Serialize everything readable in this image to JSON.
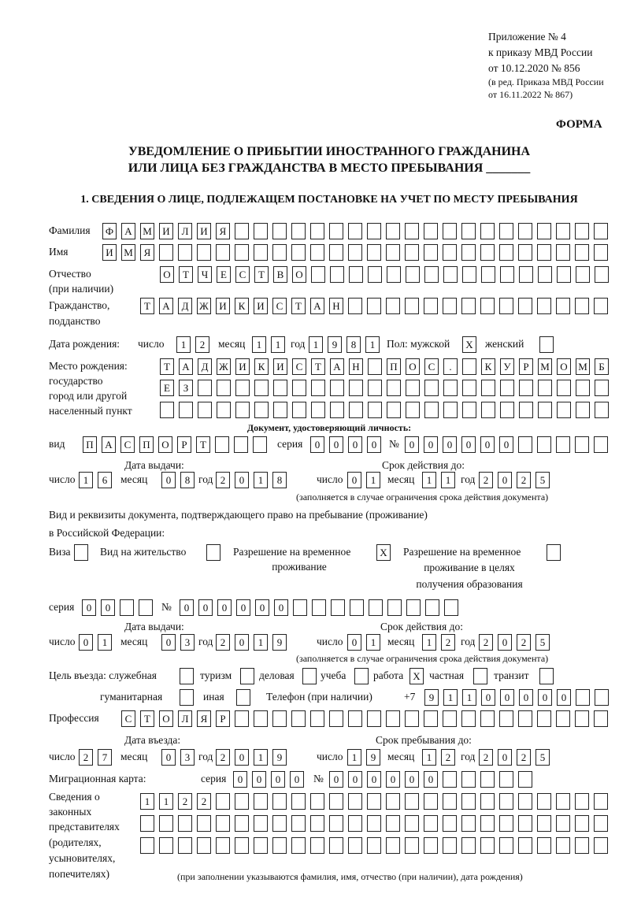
{
  "header": {
    "appendix": "Приложение № 4",
    "order": "к приказу МВД России",
    "order_date": "от 10.12.2020 № 856",
    "edit1": "(в ред. Приказа МВД России",
    "edit2": "от 16.11.2022 № 867)",
    "form_label": "ФОРМА"
  },
  "title": {
    "line1": "УВЕДОМЛЕНИЕ О ПРИБЫТИИ ИНОСТРАННОГО ГРАЖДАНИНА",
    "line2": "ИЛИ ЛИЦА БЕЗ ГРАЖДАНСТВА В МЕСТО ПРЕБЫВАНИЯ _______"
  },
  "section1": "1. СВЕДЕНИЯ О ЛИЦЕ, ПОДЛЕЖАЩЕМ ПОСТАНОВКЕ НА УЧЕТ ПО МЕСТУ ПРЕБЫВАНИЯ",
  "labels": {
    "surname": "Фамилия",
    "name": "Имя",
    "patronymic1": "Отчество",
    "patronymic2": "(при наличии)",
    "citizenship1": "Гражданство,",
    "citizenship2": "подданство",
    "birth_date": "Дата рождения:",
    "day": "число",
    "month": "месяц",
    "year": "год",
    "sex": "Пол: мужской",
    "female": "женский",
    "birthplace1": "Место рождения:",
    "birthplace2": "государство",
    "birthplace3": "город или другой",
    "birthplace4": "населенный пункт",
    "id_doc": "Документ, удостоверяющий личность:",
    "kind": "вид",
    "series": "серия",
    "number": "№",
    "issue_date": "Дата выдачи:",
    "valid_until": "Срок действия до:",
    "valid_note": "(заполняется в случае ограничения срока действия документа)",
    "right_doc1": "Вид и реквизиты документа, подтверждающего право на пребывание (проживание)",
    "right_doc2": "в Российской Федерации:",
    "visa": "Виза",
    "residence": "Вид на жительство",
    "trp1": "Разрешение на временное",
    "trp2": "проживание",
    "trp_edu1": "Разрешение на временное",
    "trp_edu2": "проживание в целях",
    "trp_edu3": "получения образования",
    "purpose": "Цель въезда: служебная",
    "tourism": "туризм",
    "business": "деловая",
    "study": "учеба",
    "work": "работа",
    "private": "частная",
    "transit": "транзит",
    "humanitarian": "гуманитарная",
    "other": "иная",
    "phone": "Телефон (при наличии)",
    "phone_prefix": "+7",
    "profession": "Профессия",
    "entry_date": "Дата въезда:",
    "stay_until": "Срок пребывания до:",
    "migration_card": "Миграционная карта:",
    "reps1": "Сведения о",
    "reps2": "законных",
    "reps3": "представителях",
    "reps4": "(родителях,",
    "reps5": "усыновителях,",
    "reps6": "попечителях)",
    "reps_note": "(при заполнении указываются фамилия, имя, отчество (при наличии), дата рождения)"
  },
  "values": {
    "surname": [
      "Ф",
      "А",
      "М",
      "И",
      "Л",
      "И",
      "Я"
    ],
    "name": [
      "И",
      "М",
      "Я"
    ],
    "patronymic": [
      "О",
      "Т",
      "Ч",
      "Е",
      "С",
      "Т",
      "В",
      "О"
    ],
    "citizenship": [
      "Т",
      "А",
      "Д",
      "Ж",
      "И",
      "К",
      "И",
      "С",
      "Т",
      "А",
      "Н"
    ],
    "birth_day": [
      "1",
      "2"
    ],
    "birth_month": [
      "1",
      "1"
    ],
    "birth_year": [
      "1",
      "9",
      "8",
      "1"
    ],
    "sex_male": "X",
    "sex_female": "",
    "birthplace_1": [
      "Т",
      "А",
      "Д",
      "Ж",
      "И",
      "К",
      "И",
      "С",
      "Т",
      "А",
      "Н",
      "",
      "П",
      "О",
      "С",
      ".",
      "",
      "К",
      "У",
      "Р",
      "М",
      "О",
      "М",
      "Б"
    ],
    "birthplace_2": [
      "Е",
      "З"
    ],
    "birthplace_3": [],
    "doc_kind": [
      "П",
      "А",
      "С",
      "П",
      "О",
      "Р",
      "Т"
    ],
    "doc_series": [
      "0",
      "0",
      "0",
      "0"
    ],
    "doc_number": [
      "0",
      "0",
      "0",
      "0",
      "0",
      "0"
    ],
    "doc_issue_day": [
      "1",
      "6"
    ],
    "doc_issue_month": [
      "0",
      "8"
    ],
    "doc_issue_year": [
      "2",
      "0",
      "1",
      "8"
    ],
    "doc_valid_day": [
      "0",
      "1"
    ],
    "doc_valid_month": [
      "1",
      "1"
    ],
    "doc_valid_year": [
      "2",
      "0",
      "2",
      "5"
    ],
    "visa": "",
    "residence_permit": "",
    "temp_residence": "X",
    "temp_residence_edu": "",
    "right_series": [
      "0",
      "0"
    ],
    "right_number": [
      "0",
      "0",
      "0",
      "0",
      "0",
      "0"
    ],
    "right_issue_day": [
      "0",
      "1"
    ],
    "right_issue_month": [
      "0",
      "3"
    ],
    "right_issue_year": [
      "2",
      "0",
      "1",
      "9"
    ],
    "right_valid_day": [
      "0",
      "1"
    ],
    "right_valid_month": [
      "1",
      "2"
    ],
    "right_valid_year": [
      "2",
      "0",
      "2",
      "5"
    ],
    "purpose_official": "",
    "purpose_tourism": "",
    "purpose_business": "",
    "purpose_study": "",
    "purpose_work": "X",
    "purpose_private": "",
    "purpose_transit": "",
    "purpose_humanitarian": "",
    "purpose_other": "",
    "phone": [
      "9",
      "1",
      "1",
      "0",
      "0",
      "0",
      "0",
      "0"
    ],
    "profession": [
      "С",
      "Т",
      "О",
      "Л",
      "Я",
      "Р"
    ],
    "entry_day": [
      "2",
      "7"
    ],
    "entry_month": [
      "0",
      "3"
    ],
    "entry_year": [
      "2",
      "0",
      "1",
      "9"
    ],
    "stay_day": [
      "1",
      "9"
    ],
    "stay_month": [
      "1",
      "2"
    ],
    "stay_year": [
      "2",
      "0",
      "2",
      "5"
    ],
    "mig_series": [
      "0",
      "0",
      "0",
      "0"
    ],
    "mig_number": [
      "0",
      "0",
      "0",
      "0",
      "0",
      "0"
    ],
    "reps_1": [
      "1",
      "1",
      "2",
      "2"
    ],
    "reps_2": [],
    "reps_3": []
  }
}
